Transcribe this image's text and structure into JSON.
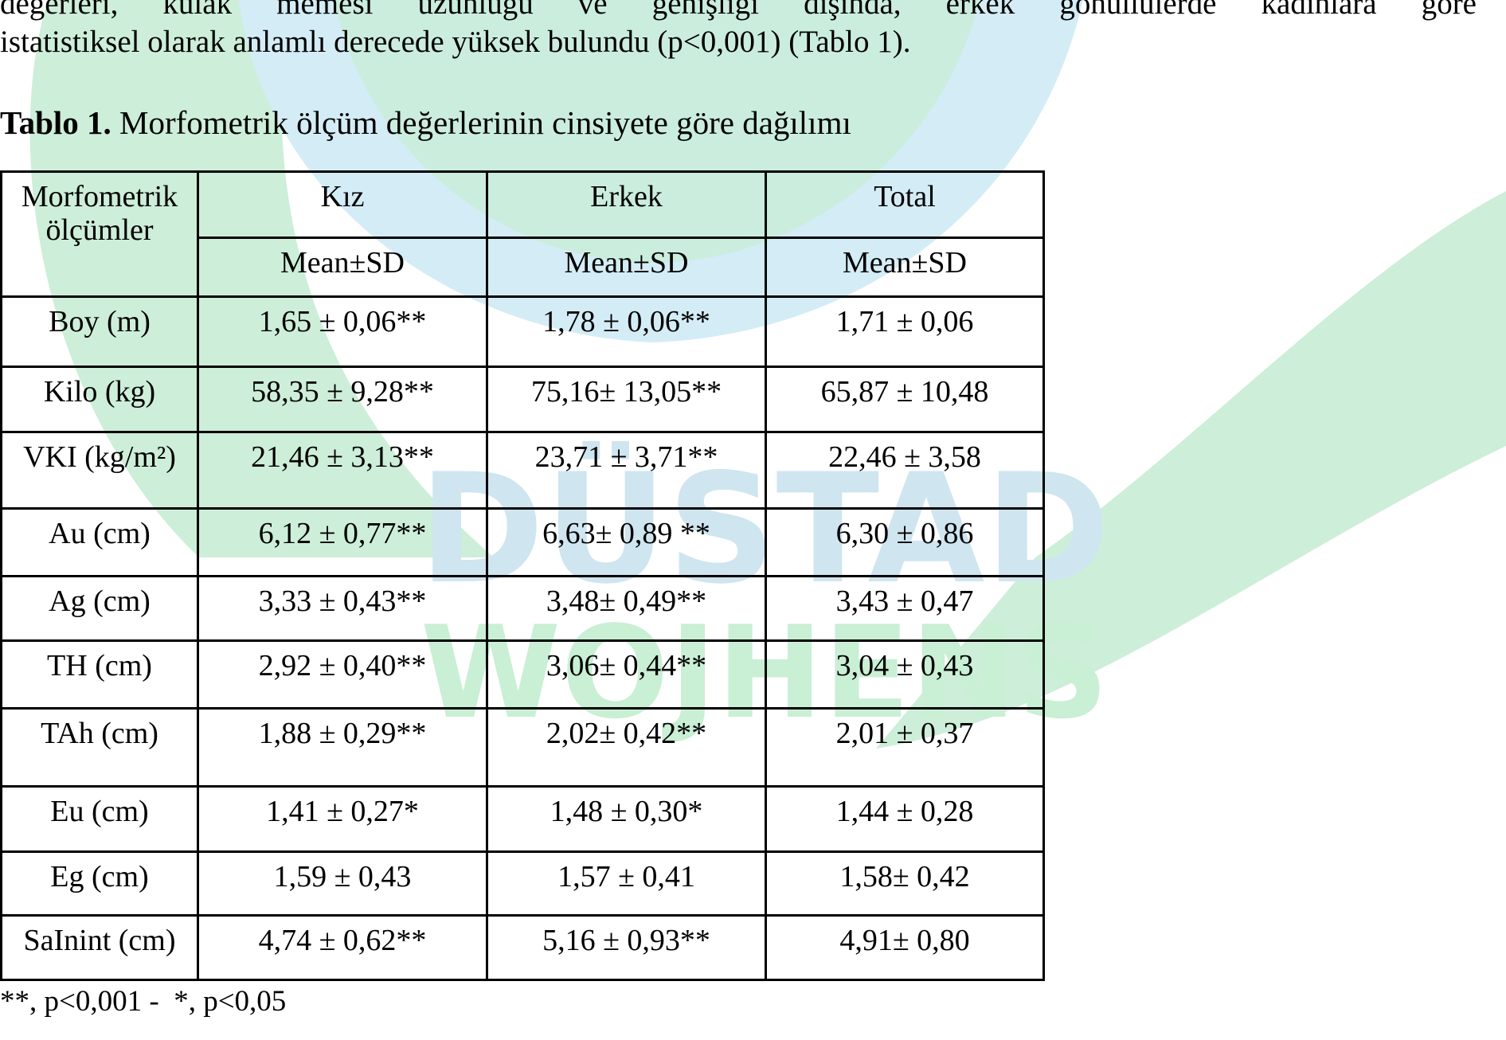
{
  "text": {
    "lines": [
      "değerleri, kulak memesi uzunluğu ve genişliği dışında, erkek gönüllülerde kadınlara göre",
      "istatistiksel olarak anlamlı derecede yüksek bulundu (p<0,001) (Tablo 1)."
    ]
  },
  "watermark": [
    "DÜSTAD",
    "WOJHENS"
  ],
  "table": {
    "caption_label": "Tablo 1.",
    "caption": "Morfometrik ölçüm değerlerinin cinsiyete göre dağılımı",
    "header": [
      "Morfometrik ölçümler",
      "Kız",
      "Erkek",
      "Total"
    ],
    "subheader": [
      "Mean±SD",
      "Mean±SD",
      "Mean±SD"
    ],
    "rows": [
      [
        "Boy (m)",
        "1,65 ± 0,06**",
        "1,78 ± 0,06**",
        "1,71 ± 0,06"
      ],
      [
        "Kilo (kg)",
        "58,35 ± 9,28**",
        "75,16± 13,05**",
        "65,87 ± 10,48"
      ],
      [
        "VKI (kg/m²)",
        "21,46 ± 3,13**",
        "23,71 ± 3,71**",
        "22,46 ± 3,58"
      ],
      [
        "Au (cm)",
        "6,12 ± 0,77**",
        "6,63± 0,89 **",
        "6,30 ± 0,86"
      ],
      [
        "Ag (cm)",
        "3,33 ± 0,43**",
        "3,48± 0,49**",
        "3,43 ± 0,47"
      ],
      [
        "TH (cm)",
        "2,92 ± 0,40**",
        "3,06± 0,44**",
        "3,04 ± 0,43"
      ],
      [
        "TAh (cm)",
        "1,88 ± 0,29**",
        "2,02± 0,42**",
        "2,01 ± 0,37"
      ],
      [
        "Eu (cm)",
        "1,41 ± 0,27*",
        "1,48 ± 0,30*",
        "1,44 ± 0,28"
      ],
      [
        "Eg (cm)",
        "1,59 ± 0,43",
        "1,57 ± 0,41",
        "1,58± 0,42"
      ],
      [
        "SaInint (cm)",
        "4,74 ± 0,62**",
        "5,16 ± 0,93**",
        "4,91± 0,80"
      ]
    ]
  },
  "footnote": "**, p<0,001 -  *, p<0,05"
}
